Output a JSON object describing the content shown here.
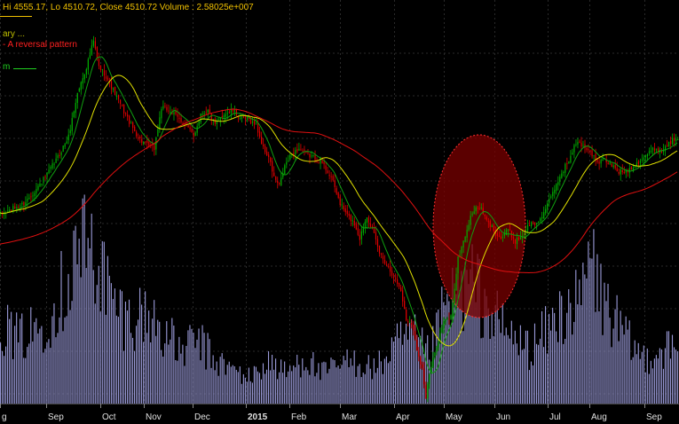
{
  "header": {
    "ohlc": "Hi 4555.17, Lo 4510.72, Close 4510.72 Volume : 2.58025e+007",
    "label_1": "ary ...",
    "label_2": "- A reversal pattern",
    "label_3": "m"
  },
  "colors": {
    "background": "#000000",
    "grid": "#2a2a2a",
    "up_candle": "#00b000",
    "down_candle": "#e00000",
    "volume": "#9a9ad8",
    "ma_fast": "#10a010",
    "ma_mid": "#e0e000",
    "ma_slow": "#e01010",
    "highlight": "#7a0000"
  },
  "chart_data": {
    "type": "candlestick",
    "x_tick_labels": [
      "g",
      "Sep",
      "Oct",
      "Nov",
      "Dec",
      "2015",
      "Feb",
      "Mar",
      "Apr",
      "May",
      "Jun",
      "Jul",
      "Aug",
      "Sep"
    ],
    "bold_tick": "2015",
    "anchor_levels": [
      [
        0,
        4250
      ],
      [
        6,
        4270
      ],
      [
        13,
        4290
      ],
      [
        20,
        4340
      ],
      [
        26,
        4390
      ],
      [
        32,
        4450
      ],
      [
        38,
        4520
      ],
      [
        43,
        4670
      ],
      [
        48,
        4760
      ],
      [
        52,
        4850
      ],
      [
        55,
        4760
      ],
      [
        58,
        4740
      ],
      [
        63,
        4680
      ],
      [
        68,
        4620
      ],
      [
        73,
        4560
      ],
      [
        78,
        4510
      ],
      [
        82,
        4490
      ],
      [
        86,
        4480
      ],
      [
        90,
        4620
      ],
      [
        95,
        4610
      ],
      [
        100,
        4580
      ],
      [
        104,
        4560
      ],
      [
        108,
        4520
      ],
      [
        112,
        4600
      ],
      [
        116,
        4610
      ],
      [
        120,
        4560
      ],
      [
        125,
        4600
      ],
      [
        130,
        4610
      ],
      [
        135,
        4580
      ],
      [
        139,
        4580
      ],
      [
        143,
        4560
      ],
      [
        147,
        4480
      ],
      [
        150,
        4450
      ],
      [
        153,
        4380
      ],
      [
        156,
        4350
      ],
      [
        159,
        4420
      ],
      [
        163,
        4460
      ],
      [
        167,
        4480
      ],
      [
        171,
        4460
      ],
      [
        175,
        4450
      ],
      [
        180,
        4430
      ],
      [
        185,
        4380
      ],
      [
        190,
        4290
      ],
      [
        194,
        4250
      ],
      [
        198,
        4220
      ],
      [
        201,
        4170
      ],
      [
        205,
        4250
      ],
      [
        208,
        4200
      ],
      [
        212,
        4120
      ],
      [
        216,
        4080
      ],
      [
        220,
        4040
      ],
      [
        224,
        3990
      ],
      [
        227,
        3890
      ],
      [
        230,
        3880
      ],
      [
        233,
        3790
      ],
      [
        236,
        3720
      ],
      [
        238,
        3620
      ],
      [
        240,
        3700
      ],
      [
        244,
        3800
      ],
      [
        248,
        3880
      ],
      [
        252,
        3900
      ],
      [
        256,
        4100
      ],
      [
        260,
        4180
      ],
      [
        264,
        4260
      ],
      [
        268,
        4280
      ],
      [
        272,
        4230
      ],
      [
        276,
        4200
      ],
      [
        280,
        4170
      ],
      [
        284,
        4200
      ],
      [
        288,
        4160
      ],
      [
        292,
        4180
      ],
      [
        296,
        4220
      ],
      [
        300,
        4220
      ],
      [
        304,
        4260
      ],
      [
        308,
        4310
      ],
      [
        312,
        4370
      ],
      [
        316,
        4420
      ],
      [
        319,
        4450
      ],
      [
        322,
        4500
      ],
      [
        326,
        4490
      ],
      [
        330,
        4470
      ],
      [
        334,
        4430
      ],
      [
        338,
        4440
      ],
      [
        342,
        4420
      ],
      [
        346,
        4400
      ],
      [
        350,
        4400
      ],
      [
        354,
        4420
      ],
      [
        358,
        4440
      ],
      [
        362,
        4460
      ],
      [
        366,
        4480
      ],
      [
        370,
        4470
      ],
      [
        374,
        4500
      ],
      [
        379,
        4520
      ]
    ],
    "y_range": [
      3600,
      4900
    ],
    "moving_averages": [
      {
        "period": 9,
        "color": "#10a010"
      },
      {
        "period": 25,
        "color": "#e0e000"
      },
      {
        "period": 90,
        "color": "#e01010"
      }
    ],
    "volume_range": [
      0,
      100
    ],
    "volume_anchors": [
      [
        0,
        38
      ],
      [
        10,
        30
      ],
      [
        20,
        35
      ],
      [
        30,
        45
      ],
      [
        38,
        60
      ],
      [
        44,
        75
      ],
      [
        50,
        72
      ],
      [
        56,
        66
      ],
      [
        62,
        48
      ],
      [
        70,
        40
      ],
      [
        80,
        42
      ],
      [
        90,
        36
      ],
      [
        100,
        24
      ],
      [
        110,
        30
      ],
      [
        120,
        20
      ],
      [
        130,
        16
      ],
      [
        140,
        12
      ],
      [
        150,
        20
      ],
      [
        160,
        14
      ],
      [
        170,
        22
      ],
      [
        180,
        14
      ],
      [
        190,
        18
      ],
      [
        200,
        20
      ],
      [
        210,
        16
      ],
      [
        220,
        26
      ],
      [
        230,
        32
      ],
      [
        240,
        22
      ],
      [
        248,
        42
      ],
      [
        256,
        52
      ],
      [
        264,
        56
      ],
      [
        272,
        46
      ],
      [
        280,
        36
      ],
      [
        288,
        30
      ],
      [
        296,
        26
      ],
      [
        304,
        32
      ],
      [
        312,
        40
      ],
      [
        318,
        48
      ],
      [
        324,
        44
      ],
      [
        330,
        70
      ],
      [
        336,
        50
      ],
      [
        342,
        42
      ],
      [
        348,
        32
      ],
      [
        354,
        26
      ],
      [
        360,
        22
      ],
      [
        366,
        24
      ],
      [
        372,
        26
      ],
      [
        379,
        24
      ]
    ]
  }
}
